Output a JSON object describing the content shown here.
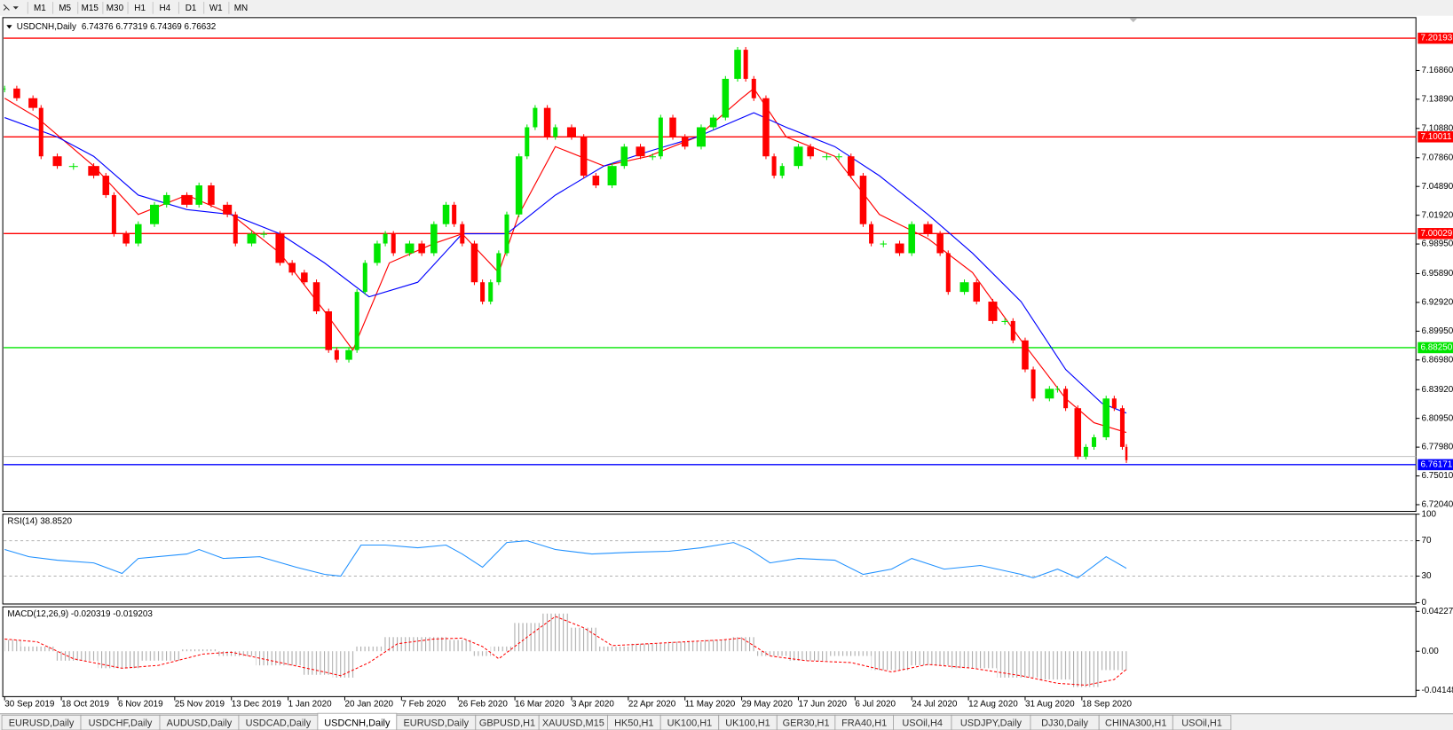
{
  "toolbar": {
    "timeframes": [
      "M1",
      "M5",
      "M15",
      "M30",
      "H1",
      "H4",
      "D1",
      "W1",
      "MN"
    ]
  },
  "chart_data": {
    "type": "candlestick",
    "title": "USDCNH,Daily",
    "header": "6.74376 6.77319 6.74369 6.76632",
    "bull_color": "#00e600",
    "bear_color": "#ff0000",
    "xlim": [
      0,
      348.5
    ],
    "xticks": [
      {
        "value": 0,
        "label": "30 Sep 2019"
      },
      {
        "value": 14,
        "label": "18 Oct 2019"
      },
      {
        "value": 28,
        "label": "6 Nov 2019"
      },
      {
        "value": 42,
        "label": "25 Nov 2019"
      },
      {
        "value": 56,
        "label": "13 Dec 2019"
      },
      {
        "value": 70,
        "label": "1 Jan 2020"
      },
      {
        "value": 84,
        "label": "20 Jan 2020"
      },
      {
        "value": 98,
        "label": "7 Feb 2020"
      },
      {
        "value": 112,
        "label": "26 Feb 2020"
      },
      {
        "value": 126,
        "label": "16 Mar 2020"
      },
      {
        "value": 140,
        "label": "3 Apr 2020"
      },
      {
        "value": 154,
        "label": "22 Apr 2020"
      },
      {
        "value": 168,
        "label": "11 May 2020"
      },
      {
        "value": 182,
        "label": "29 May 2020"
      },
      {
        "value": 196,
        "label": "17 Jun 2020"
      },
      {
        "value": 210,
        "label": "6 Jul 2020"
      },
      {
        "value": 224,
        "label": "24 Jul 2020"
      },
      {
        "value": 238,
        "label": "12 Aug 2020"
      },
      {
        "value": 252,
        "label": "31 Aug 2020"
      },
      {
        "value": 266,
        "label": "18 Sep 2020"
      }
    ],
    "ylim": [
      6.7135,
      7.2232
    ],
    "yticks": [
      {
        "value": 7.1686,
        "label": "7.16860"
      },
      {
        "value": 7.1389,
        "label": "7.13890"
      },
      {
        "value": 7.1088,
        "label": "7.10880"
      },
      {
        "value": 7.0786,
        "label": "7.07860"
      },
      {
        "value": 7.0489,
        "label": "7.04890"
      },
      {
        "value": 7.0192,
        "label": "7.01920"
      },
      {
        "value": 6.9895,
        "label": "6.98950"
      },
      {
        "value": 6.9589,
        "label": "6.95890"
      },
      {
        "value": 6.9292,
        "label": "6.92920"
      },
      {
        "value": 6.8995,
        "label": "6.89950"
      },
      {
        "value": 6.8698,
        "label": "6.86980"
      },
      {
        "value": 6.8392,
        "label": "6.83920"
      },
      {
        "value": 6.8095,
        "label": "6.80950"
      },
      {
        "value": 6.7798,
        "label": "6.77980"
      },
      {
        "value": 6.7501,
        "label": "6.75010"
      },
      {
        "value": 6.7204,
        "label": "6.72040"
      }
    ],
    "levels": [
      {
        "value": 7.20193,
        "color": "#ff0000"
      },
      {
        "value": 7.10011,
        "color": "#ff0000"
      },
      {
        "value": 7.00029,
        "color": "#ff0000"
      },
      {
        "value": 6.8825,
        "label": "6.88250",
        "color": "#00e600"
      },
      {
        "value": 6.76171,
        "color": "#0000ff"
      }
    ],
    "x": [
      0,
      3,
      7,
      9,
      13,
      17,
      22,
      25,
      27,
      30,
      33,
      37,
      40,
      45,
      48,
      51,
      55,
      57,
      61,
      64,
      68,
      71,
      74,
      77,
      80,
      82,
      85,
      87,
      89,
      92,
      94,
      96,
      100,
      103,
      106,
      109,
      111,
      113,
      116,
      118,
      120,
      122,
      124,
      127,
      129,
      131,
      134,
      136,
      140,
      143,
      146,
      150,
      153,
      157,
      160,
      162,
      165,
      168,
      172,
      175,
      178,
      181,
      183,
      185,
      188,
      190,
      192,
      196,
      199,
      203,
      206,
      209,
      212,
      214,
      217,
      221,
      224,
      228,
      231,
      233,
      237,
      240,
      244,
      247,
      249,
      252,
      254,
      258,
      260,
      262,
      265,
      267,
      269,
      272,
      274,
      276,
      277
    ],
    "closes": [
      7.15,
      7.14,
      7.13,
      7.08,
      7.07,
      7.07,
      7.06,
      7.04,
      7.0,
      6.99,
      7.01,
      7.03,
      7.04,
      7.03,
      7.05,
      7.03,
      7.02,
      6.99,
      7.0,
      7.0,
      6.97,
      6.96,
      6.95,
      6.92,
      6.88,
      6.87,
      6.88,
      6.94,
      6.97,
      6.99,
      7.0,
      6.98,
      6.99,
      6.98,
      7.01,
      7.03,
      7.01,
      6.99,
      6.95,
      6.93,
      6.95,
      6.98,
      7.02,
      7.08,
      7.11,
      7.13,
      7.1,
      7.11,
      7.1,
      7.06,
      7.05,
      7.07,
      7.09,
      7.08,
      7.08,
      7.12,
      7.1,
      7.09,
      7.11,
      7.12,
      7.16,
      7.19,
      7.16,
      7.14,
      7.08,
      7.06,
      7.07,
      7.09,
      7.08,
      7.08,
      7.08,
      7.06,
      7.01,
      6.99,
      6.99,
      6.98,
      7.01,
      7.0,
      6.98,
      6.94,
      6.95,
      6.93,
      6.91,
      6.91,
      6.89,
      6.86,
      6.83,
      6.84,
      6.84,
      6.82,
      6.77,
      6.78,
      6.79,
      6.83,
      6.82,
      6.78,
      6.76632
    ],
    "ma": [
      {
        "color": "#ff0000",
        "x": [
          0,
          8,
          22,
          33,
          45,
          56,
          68,
          79,
          86,
          95,
          106,
          113,
          122,
          127,
          136,
          148,
          159,
          171,
          182,
          185,
          193,
          205,
          216,
          228,
          239,
          251,
          262,
          269,
          277
        ],
        "values": [
          7.14,
          7.12,
          7.07,
          7.02,
          7.04,
          7.02,
          6.98,
          6.92,
          6.88,
          6.97,
          6.99,
          7.0,
          6.96,
          7.02,
          7.09,
          7.07,
          7.08,
          7.1,
          7.14,
          7.15,
          7.1,
          7.08,
          7.02,
          6.995,
          6.96,
          6.89,
          6.83,
          6.805,
          6.795
        ]
      },
      {
        "color": "#0000ff",
        "x": [
          0,
          13,
          22,
          33,
          45,
          56,
          68,
          79,
          90,
          102,
          113,
          124,
          136,
          148,
          159,
          171,
          185,
          193,
          205,
          216,
          228,
          239,
          251,
          262,
          271,
          277
        ],
        "values": [
          7.12,
          7.1,
          7.08,
          7.04,
          7.025,
          7.02,
          7.0,
          6.97,
          6.935,
          6.95,
          7.0,
          7.0,
          7.04,
          7.07,
          7.085,
          7.1,
          7.125,
          7.11,
          7.09,
          7.06,
          7.02,
          6.98,
          6.93,
          6.86,
          6.825,
          6.815
        ]
      }
    ],
    "rsi": {
      "title": "RSI(14) 38.8520",
      "color": "#1e90ff",
      "ylim": [
        -1.5,
        100
      ],
      "yticks": [
        100,
        70,
        30,
        0
      ],
      "dashed": [
        70,
        30
      ],
      "x": [
        0,
        6,
        13,
        22,
        29,
        33,
        45,
        48,
        54,
        63,
        72,
        79,
        83,
        88,
        94,
        102,
        109,
        113,
        118,
        124,
        129,
        136,
        145,
        155,
        164,
        172,
        180,
        184,
        189,
        196,
        205,
        212,
        219,
        224,
        232,
        241,
        251,
        254,
        260,
        265,
        272,
        277
      ],
      "values": [
        60,
        52,
        48,
        45,
        33,
        50,
        55,
        60,
        50,
        52,
        40,
        32,
        30,
        65,
        65,
        62,
        65,
        55,
        40,
        68,
        70,
        60,
        55,
        57,
        58,
        62,
        68,
        60,
        45,
        50,
        48,
        32,
        38,
        50,
        38,
        42,
        32,
        28,
        38,
        28,
        52,
        38.852
      ]
    },
    "macd": {
      "title": "MACD(12,26,9) -0.020319 -0.019203",
      "signal_color": "#ff0000",
      "ylim": [
        -0.0482,
        0.0472
      ],
      "yticks": [
        0.042275,
        {
          "value": 0,
          "label": "0.00"
        },
        -0.04148
      ],
      "x": [
        0,
        8,
        17,
        29,
        38,
        49,
        56,
        68,
        79,
        83,
        90,
        97,
        106,
        113,
        118,
        122,
        129,
        136,
        143,
        150,
        159,
        168,
        177,
        182,
        189,
        198,
        209,
        219,
        228,
        239,
        251,
        260,
        267,
        274,
        277
      ],
      "histogram": [
        0.012,
        0.005,
        -0.01,
        -0.018,
        -0.01,
        0.002,
        -0.005,
        -0.015,
        -0.025,
        -0.028,
        0.005,
        0.015,
        0.015,
        0.012,
        -0.005,
        0.005,
        0.03,
        0.04,
        0.025,
        0.005,
        0.008,
        0.01,
        0.012,
        0.015,
        -0.005,
        -0.01,
        -0.005,
        -0.02,
        -0.015,
        -0.018,
        -0.028,
        -0.03,
        -0.038,
        -0.02,
        -0.020319
      ],
      "signal": [
        0.013,
        0.01,
        -0.008,
        -0.018,
        -0.015,
        -0.003,
        -0.001,
        -0.012,
        -0.022,
        -0.026,
        -0.012,
        0.008,
        0.013,
        0.014,
        0.005,
        -0.008,
        0.015,
        0.037,
        0.025,
        0.006,
        0.008,
        0.01,
        0.012,
        0.014,
        -0.005,
        -0.01,
        -0.012,
        -0.022,
        -0.014,
        -0.018,
        -0.026,
        -0.034,
        -0.036,
        -0.03,
        -0.019203
      ]
    }
  },
  "tabs": [
    "EURUSD,Daily",
    "USDCHF,Daily",
    "AUDUSD,Daily",
    "USDCAD,Daily",
    "USDCNH,Daily",
    "EURUSD,Daily",
    "GBPUSD,H1",
    "XAUUSD,M15",
    "HK50,H1",
    "UK100,H1",
    "UK100,H1",
    "GER30,H1",
    "FRA40,H1",
    "USOil,H4",
    "USDJPY,Daily",
    "DJ30,Daily",
    "CHINA300,H1",
    "USOil,H1"
  ],
  "active_tab": 4
}
